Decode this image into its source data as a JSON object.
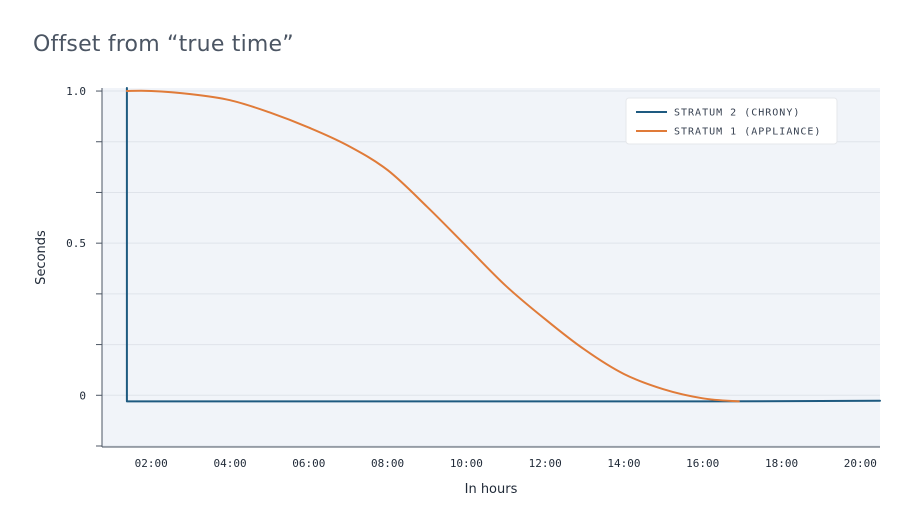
{
  "chart_data": {
    "type": "line",
    "title": "Offset from “true time”",
    "xlabel": "In hours",
    "ylabel": "Seconds",
    "x_ticks": [
      "02:00",
      "04:00",
      "06:00",
      "08:00",
      "10:00",
      "12:00",
      "14:00",
      "16:00",
      "18:00",
      "20:00"
    ],
    "y_ticks": [
      {
        "value": 1.0,
        "label": "1.0"
      },
      {
        "value": 0.5,
        "label": "0.5"
      },
      {
        "value": 0,
        "label": "0"
      }
    ],
    "xlim": [
      "00:45",
      "20:30"
    ],
    "ylim": [
      -0.17,
      1.01
    ],
    "grid": "horizontal",
    "legend_position": "top-right",
    "series": [
      {
        "name": "STRATUM 2 (CHRONY)",
        "color": "#1e5a80",
        "points": [
          {
            "x": "01:23",
            "y": 1.01
          },
          {
            "x": "01:23",
            "y": -0.02
          },
          {
            "x": "04:00",
            "y": -0.02
          },
          {
            "x": "08:00",
            "y": -0.02
          },
          {
            "x": "12:00",
            "y": -0.02
          },
          {
            "x": "16:00",
            "y": -0.02
          },
          {
            "x": "20:30",
            "y": -0.018
          }
        ]
      },
      {
        "name": "STRATUM 1 (APPLIANCE)",
        "color": "#e07b39",
        "points": [
          {
            "x": "01:23",
            "y": 1.0
          },
          {
            "x": "02:00",
            "y": 1.0
          },
          {
            "x": "03:00",
            "y": 0.99
          },
          {
            "x": "04:00",
            "y": 0.97
          },
          {
            "x": "05:00",
            "y": 0.93
          },
          {
            "x": "06:00",
            "y": 0.88
          },
          {
            "x": "07:00",
            "y": 0.82
          },
          {
            "x": "08:00",
            "y": 0.74
          },
          {
            "x": "09:00",
            "y": 0.62
          },
          {
            "x": "10:00",
            "y": 0.49
          },
          {
            "x": "11:00",
            "y": 0.36
          },
          {
            "x": "12:00",
            "y": 0.25
          },
          {
            "x": "13:00",
            "y": 0.15
          },
          {
            "x": "14:00",
            "y": 0.07
          },
          {
            "x": "15:00",
            "y": 0.02
          },
          {
            "x": "16:00",
            "y": -0.01
          },
          {
            "x": "16:55",
            "y": -0.02
          }
        ]
      }
    ],
    "colors": {
      "plot_background": "#f1f4f9",
      "gridline": "#dfe3ea",
      "axis": "#4b5563"
    }
  }
}
